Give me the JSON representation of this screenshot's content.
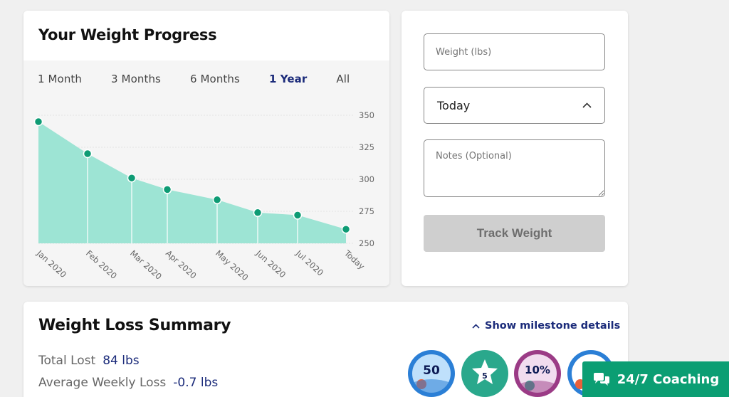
{
  "progress": {
    "title": "Your Weight Progress",
    "tabs": [
      "1 Month",
      "3 Months",
      "6 Months",
      "1 Year",
      "All"
    ],
    "active_tab": "1 Year"
  },
  "chart_data": {
    "type": "area",
    "x": [
      "Jan 2020",
      "Feb 2020",
      "Mar 2020",
      "Apr 2020",
      "May 2020",
      "Jun 2020",
      "Jul 2020",
      "Today"
    ],
    "values": [
      345,
      320,
      301,
      292,
      284,
      274,
      272,
      261
    ],
    "y_ticks": [
      350,
      325,
      300,
      275,
      250
    ],
    "ylim": [
      250,
      355
    ],
    "grid": true,
    "fill_color": "#9de4d4",
    "marker_color": "#0e9b74"
  },
  "form": {
    "weight_placeholder": "Weight (lbs)",
    "date_value": "Today",
    "notes_placeholder": "Notes (Optional)",
    "submit_label": "Track Weight"
  },
  "summary": {
    "title": "Weight Loss Summary",
    "milestone_link": "Show milestone details",
    "total_lost_label": "Total Lost",
    "total_lost_value": "84 lbs",
    "avg_weekly_label": "Average Weekly Loss",
    "avg_weekly_value": "-0.7 lbs",
    "badges": [
      "50",
      "5",
      "10%"
    ]
  },
  "coaching": {
    "label": "24/7 Coaching"
  },
  "colors": {
    "accent": "#1b2b7a",
    "brand_green": "#0b9e73"
  }
}
